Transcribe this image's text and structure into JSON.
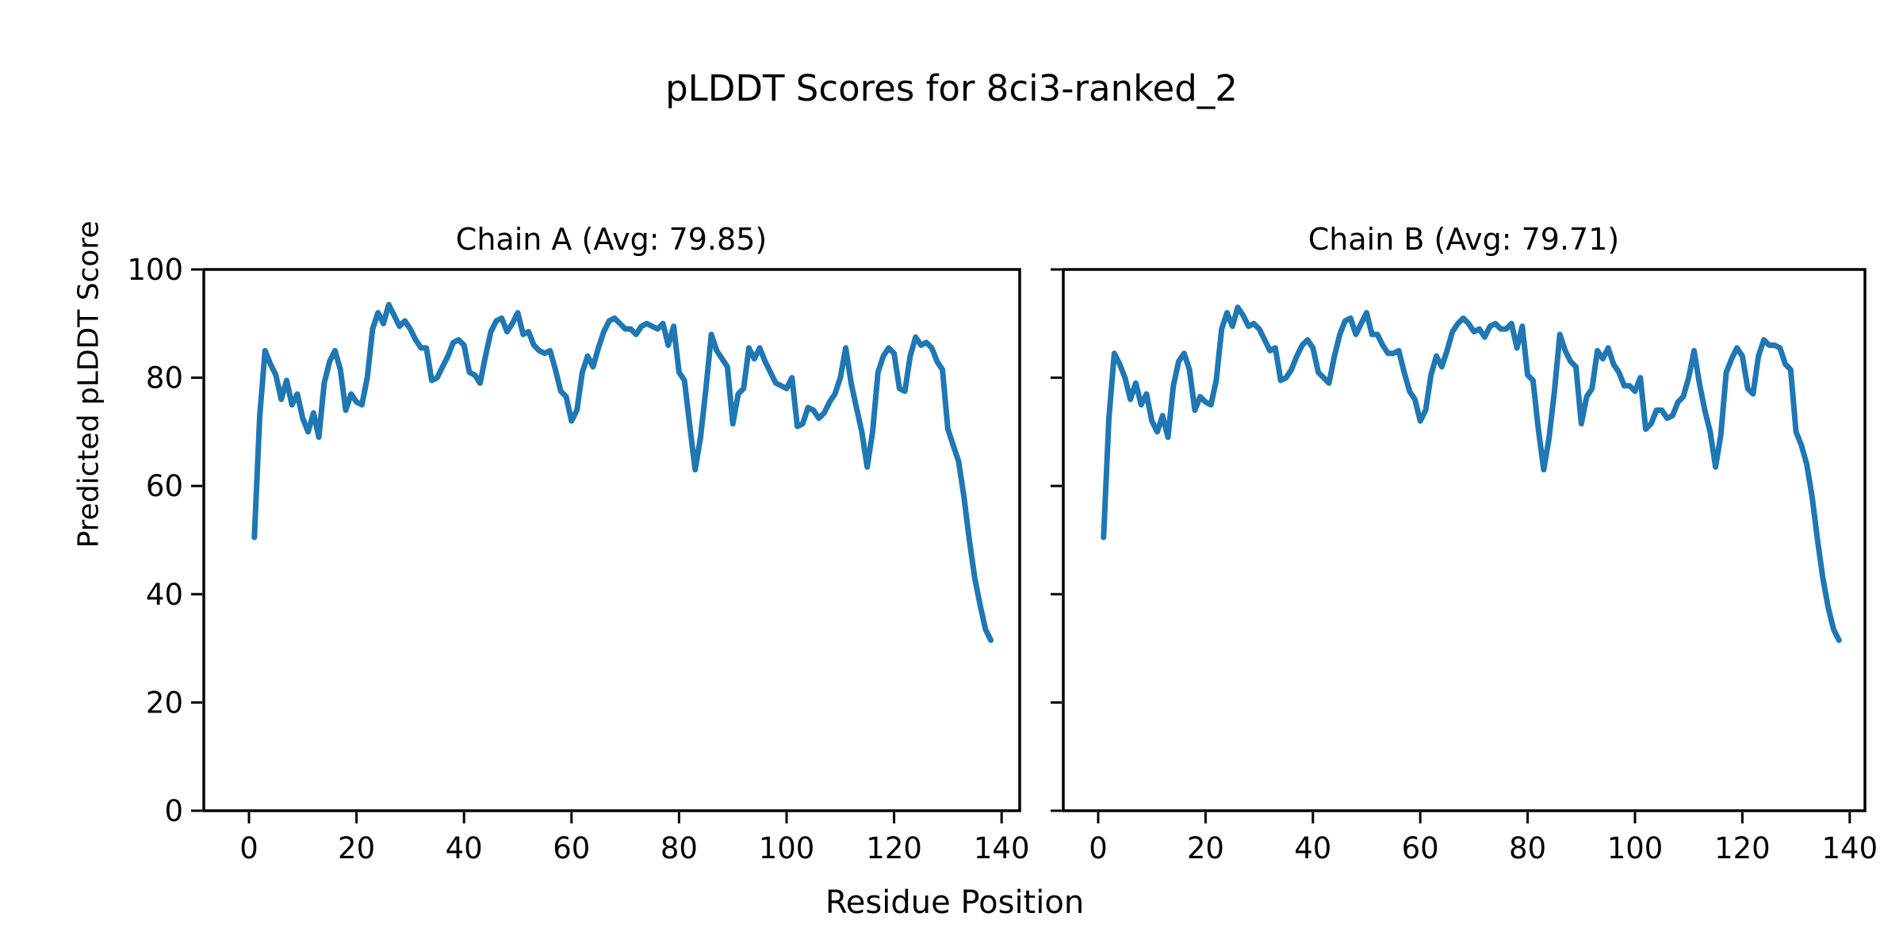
{
  "figure": {
    "suptitle": "pLDDT Scores for 8ci3-ranked_2",
    "xlabel": "Residue Position",
    "ylabel": "Predicted pLDDT Score",
    "background_color": "#ffffff",
    "text_color": "#000000",
    "spine_color": "#000000"
  },
  "chart_data": [
    {
      "type": "line",
      "chain": "A",
      "title": "Chain A (Avg: 79.85)",
      "avg": 79.85,
      "line_color": "#1f77b4",
      "xlim": [
        -8,
        143
      ],
      "ylim": [
        0,
        100
      ],
      "xticks": [
        0,
        20,
        40,
        60,
        80,
        100,
        120,
        140
      ],
      "yticks": [
        0,
        20,
        40,
        60,
        80,
        100
      ],
      "show_ytick_labels": true,
      "grid": false,
      "legend": "none",
      "x_start": 1,
      "values": [
        50.5,
        73.0,
        85.0,
        82.5,
        80.5,
        76.0,
        79.5,
        75.0,
        77.0,
        72.5,
        70.0,
        73.5,
        69.0,
        79.0,
        83.0,
        85.0,
        81.5,
        74.0,
        77.0,
        75.5,
        75.0,
        80.0,
        89.0,
        92.0,
        90.0,
        93.5,
        91.5,
        89.5,
        90.5,
        89.0,
        87.0,
        85.5,
        85.5,
        79.5,
        80.0,
        82.0,
        84.0,
        86.5,
        87.0,
        86.0,
        81.0,
        80.5,
        79.0,
        84.0,
        88.5,
        90.5,
        91.0,
        88.5,
        90.0,
        92.0,
        88.0,
        88.5,
        86.0,
        85.0,
        84.5,
        85.0,
        81.5,
        77.5,
        76.5,
        72.0,
        74.0,
        81.0,
        84.0,
        82.0,
        85.5,
        88.5,
        90.5,
        91.0,
        90.0,
        89.0,
        89.0,
        88.0,
        89.5,
        90.0,
        89.5,
        89.0,
        90.0,
        86.0,
        89.5,
        81.0,
        79.5,
        71.0,
        63.0,
        69.0,
        78.0,
        88.0,
        85.0,
        83.5,
        82.0,
        71.5,
        77.0,
        78.0,
        85.5,
        83.5,
        85.5,
        83.0,
        81.0,
        79.0,
        78.5,
        78.0,
        80.0,
        71.0,
        71.5,
        74.5,
        74.0,
        72.5,
        73.5,
        75.5,
        77.0,
        80.0,
        85.5,
        79.0,
        74.5,
        70.0,
        63.5,
        70.0,
        81.0,
        84.0,
        85.5,
        84.5,
        78.0,
        77.5,
        84.0,
        87.5,
        86.0,
        86.5,
        85.5,
        83.0,
        81.5,
        70.5,
        67.5,
        64.5,
        58.0,
        50.0,
        43.0,
        38.0,
        33.5,
        31.5
      ]
    },
    {
      "type": "line",
      "chain": "B",
      "title": "Chain B (Avg: 79.71)",
      "avg": 79.71,
      "line_color": "#1f77b4",
      "xlim": [
        -8,
        143
      ],
      "ylim": [
        0,
        100
      ],
      "xticks": [
        0,
        20,
        40,
        60,
        80,
        100,
        120,
        140
      ],
      "yticks": [
        0,
        20,
        40,
        60,
        80,
        100
      ],
      "show_ytick_labels": false,
      "grid": false,
      "legend": "none",
      "x_start": 1,
      "values": [
        50.5,
        72.5,
        84.5,
        82.5,
        80.0,
        76.0,
        79.0,
        75.0,
        77.0,
        72.0,
        70.0,
        73.0,
        69.0,
        78.5,
        83.0,
        84.5,
        81.5,
        74.0,
        76.5,
        75.5,
        75.0,
        79.5,
        89.0,
        92.0,
        89.5,
        93.0,
        91.5,
        89.5,
        90.0,
        89.0,
        87.0,
        85.0,
        85.5,
        79.5,
        80.0,
        81.5,
        84.0,
        86.0,
        87.0,
        85.5,
        81.0,
        80.0,
        79.0,
        84.0,
        88.0,
        90.5,
        91.0,
        88.0,
        90.0,
        92.0,
        88.0,
        88.0,
        86.0,
        84.5,
        84.5,
        85.0,
        81.0,
        77.5,
        76.0,
        72.0,
        74.0,
        80.5,
        84.0,
        82.0,
        85.0,
        88.5,
        90.0,
        91.0,
        90.0,
        88.5,
        89.0,
        87.5,
        89.5,
        90.0,
        89.0,
        89.0,
        90.0,
        85.5,
        89.5,
        80.5,
        79.5,
        70.5,
        63.0,
        69.0,
        77.5,
        88.0,
        85.0,
        83.0,
        82.0,
        71.5,
        76.5,
        78.0,
        85.0,
        83.5,
        85.5,
        82.5,
        81.0,
        78.5,
        78.5,
        77.5,
        80.0,
        70.5,
        71.5,
        74.0,
        74.0,
        72.5,
        73.0,
        75.5,
        76.5,
        80.0,
        85.0,
        79.0,
        74.0,
        70.0,
        63.5,
        69.5,
        81.0,
        83.5,
        85.5,
        84.0,
        78.0,
        77.0,
        84.0,
        87.0,
        86.0,
        86.0,
        85.5,
        82.5,
        81.5,
        70.0,
        67.5,
        64.0,
        58.0,
        50.0,
        43.0,
        37.5,
        33.5,
        31.5
      ]
    }
  ]
}
